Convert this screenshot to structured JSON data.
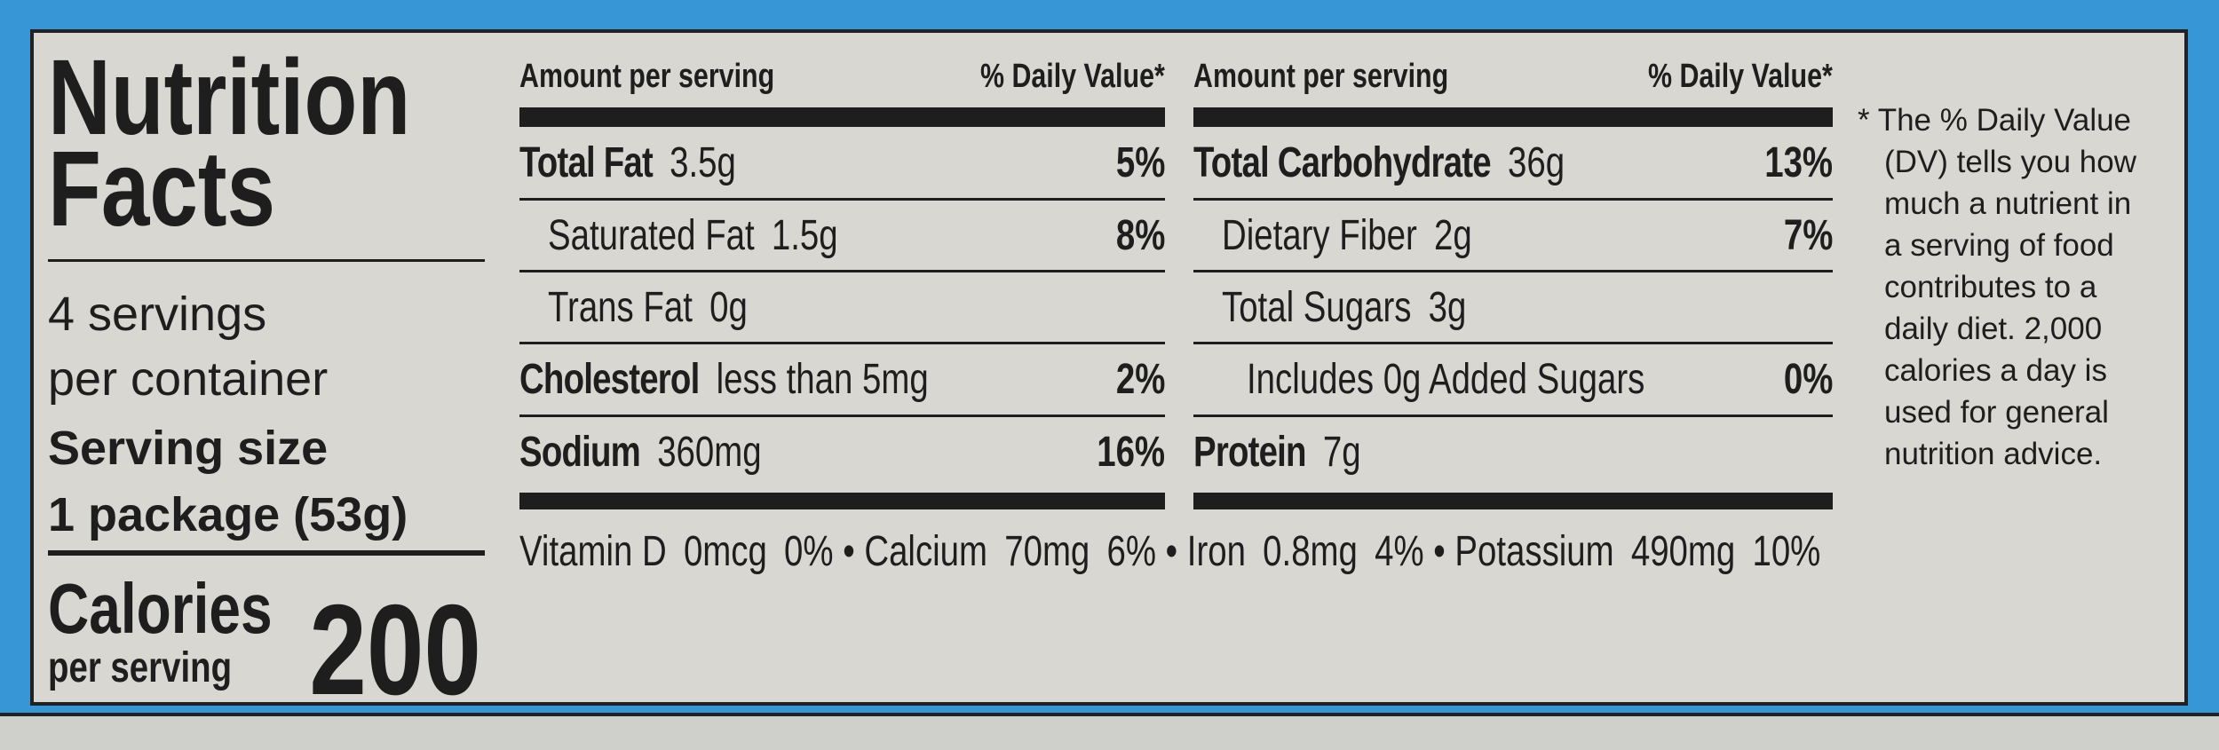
{
  "title": [
    "Nutrition",
    "Facts"
  ],
  "servings_per_container": [
    "4 servings",
    "per container"
  ],
  "serving_size": {
    "label": "Serving size",
    "value": "1 package (53g)"
  },
  "calories": {
    "label": "Calories",
    "sublabel": "per serving",
    "value": "200"
  },
  "tables": [
    {
      "header": [
        "Amount per serving",
        "% Daily Value*"
      ],
      "rows": [
        {
          "name": "Total Fat",
          "amount": "3.5g",
          "dv": "5%"
        },
        {
          "name": "Saturated Fat",
          "amount": "1.5g",
          "dv": "8%"
        },
        {
          "name": "Trans Fat",
          "amount": "0g"
        },
        {
          "name": "Cholesterol",
          "amount": "less than 5mg",
          "dv": "2%"
        },
        {
          "name": "Sodium",
          "amount": "360mg",
          "dv": "16%"
        }
      ]
    },
    {
      "header": [
        "Amount per serving",
        "% Daily Value*"
      ],
      "rows": [
        {
          "name": "Total Carbohydrate",
          "amount": "36g",
          "dv": "13%"
        },
        {
          "name": "Dietary Fiber",
          "amount": "2g",
          "dv": "7%"
        },
        {
          "name": "Total Sugars",
          "amount": "3g"
        },
        {
          "name": "Includes 0g Added Sugars",
          "dv": "0%"
        },
        {
          "name": "Protein",
          "amount": "7g"
        }
      ]
    }
  ],
  "vitamins": [
    {
      "name": "Vitamin D",
      "amount": "0mcg",
      "dv": "0%"
    },
    {
      "name": "Calcium",
      "amount": "70mg",
      "dv": "6%"
    },
    {
      "name": "Iron",
      "amount": "0.8mg",
      "dv": "4%"
    },
    {
      "name": "Potassium",
      "amount": "490mg",
      "dv": "10%"
    }
  ],
  "footnote": [
    "* The % Daily Value",
    "(DV) tells you how",
    "much a nutrient in",
    "a serving of food",
    "contributes to a",
    "daily diet. 2,000",
    "calories a day is",
    "used for general",
    "nutrition advice."
  ]
}
